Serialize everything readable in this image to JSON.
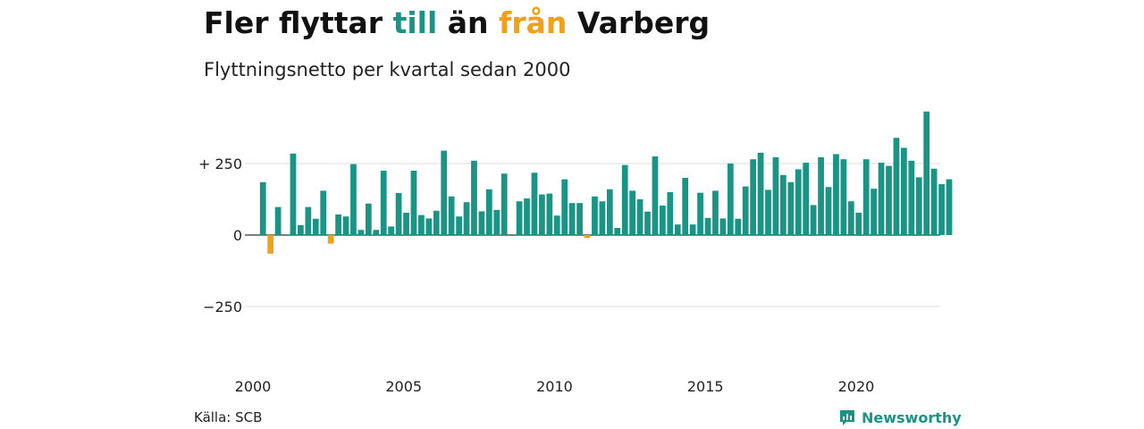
{
  "title": {
    "part1": "Fler flyttar ",
    "word_in": "till",
    "part2": " än ",
    "word_out": "från",
    "part3": " Varberg"
  },
  "subtitle": "Flyttningsnetto per kvartal sedan 2000",
  "source": "Källa: SCB",
  "brand": "Newsworthy",
  "colors": {
    "positive": "#1a9485",
    "negative": "#f0a01a",
    "grid": "#dddddd",
    "baseline": "#555555"
  },
  "chart_data": {
    "type": "bar",
    "xlabel": "",
    "ylabel": "",
    "ylim": [
      -380,
      430
    ],
    "yticks": [
      {
        "value": 250,
        "label": "+ 250"
      },
      {
        "value": 0,
        "label": "0"
      },
      {
        "value": -250,
        "label": "−250"
      }
    ],
    "xticks": [
      {
        "value": 2000,
        "label": "2000"
      },
      {
        "value": 2005,
        "label": "2005"
      },
      {
        "value": 2010,
        "label": "2010"
      },
      {
        "value": 2015,
        "label": "2015"
      },
      {
        "value": 2020,
        "label": "2020"
      }
    ],
    "x_unit": "quarter",
    "start_year": 2000,
    "series": [
      {
        "values": [
          185,
          -65,
          98,
          0,
          285,
          35,
          98,
          57,
          155,
          -30,
          72,
          65,
          248,
          18,
          110,
          18,
          225,
          30,
          147,
          78,
          225,
          70,
          58,
          85,
          295,
          135,
          65,
          115,
          260,
          83,
          160,
          88,
          215,
          0,
          118,
          128,
          218,
          142,
          145,
          68,
          195,
          112,
          112,
          -10,
          135,
          118,
          160,
          25,
          245,
          155,
          125,
          82,
          275,
          103,
          150,
          37,
          200,
          37,
          148,
          60,
          155,
          58,
          250,
          57,
          170,
          265,
          288,
          158,
          272,
          210,
          185,
          230,
          253,
          105,
          272,
          168,
          283,
          265,
          118,
          78,
          265,
          162,
          253,
          242,
          340,
          305,
          260,
          202,
          432,
          232,
          178,
          195
        ]
      }
    ]
  }
}
